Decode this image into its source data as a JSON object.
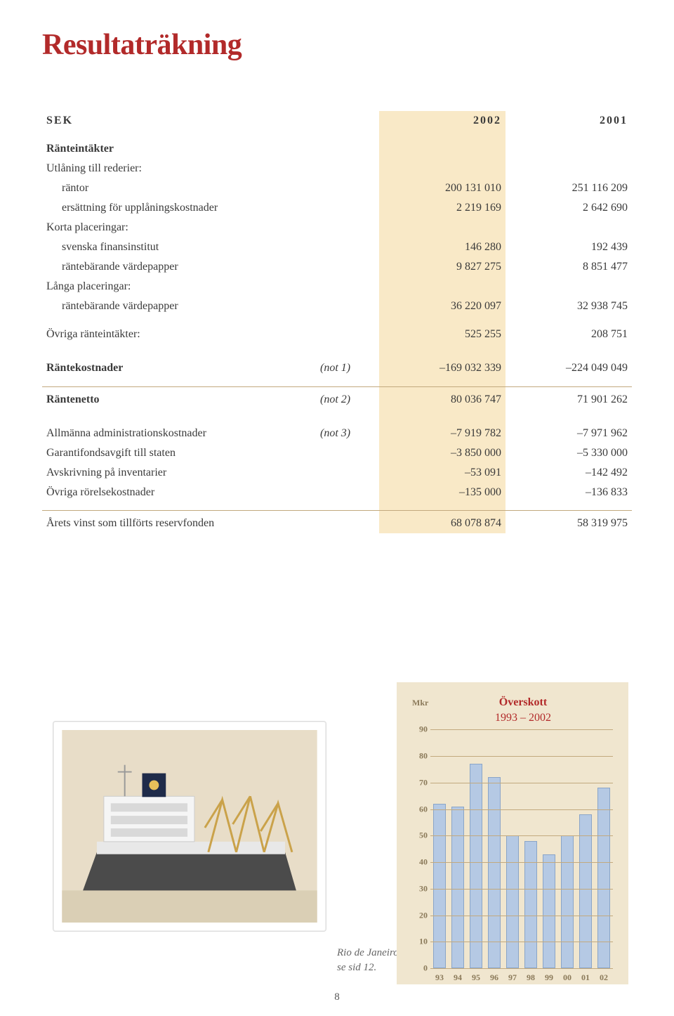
{
  "title": "Resultaträkning",
  "table": {
    "currency_label": "SEK",
    "year_a": "2002",
    "year_b": "2001",
    "sections": {
      "ranteintakter": "Ränteintäkter",
      "utlaning": "Utlåning till rederier:",
      "rantor": {
        "label": "räntor",
        "a": "200 131 010",
        "b": "251 116 209"
      },
      "ersattning": {
        "label": "ersättning för upplåningskostnader",
        "a": "2 219 169",
        "b": "2 642 690"
      },
      "korta": "Korta placeringar:",
      "svenska": {
        "label": "svenska finansinstitut",
        "a": "146 280",
        "b": "192 439"
      },
      "rantevp1": {
        "label": "räntebärande värdepapper",
        "a": "9 827 275",
        "b": "8 851 477"
      },
      "langa": "Långa placeringar:",
      "rantevp2": {
        "label": "räntebärande värdepapper",
        "a": "36 220 097",
        "b": "32 938 745"
      },
      "ovriga_ri": {
        "label": "Övriga ränteintäkter:",
        "a": "525 255",
        "b": "208 751"
      },
      "rantekost": {
        "label": "Räntekostnader",
        "note": "(not 1)",
        "a": "–169 032 339",
        "b": "–224 049 049"
      },
      "rantenetto": {
        "label": "Räntenetto",
        "note": "(not 2)",
        "a": "80 036 747",
        "b": "71 901 262"
      },
      "admin": {
        "label": "Allmänna administrationskostnader",
        "note": "(not 3)",
        "a": "–7 919 782",
        "b": "–7 971 962"
      },
      "garanti": {
        "label": "Garantifondsavgift till staten",
        "a": "–3 850 000",
        "b": "–5 330 000"
      },
      "avskr": {
        "label": "Avskrivning på inventarier",
        "a": "–53 091",
        "b": "–142 492"
      },
      "ovriga_rk": {
        "label": "Övriga rörelsekostnader",
        "a": "–135 000",
        "b": "–136 833"
      },
      "arets": {
        "label": "Årets vinst som tillförts reservfonden",
        "a": "68 078 874",
        "b": "58 319 975"
      }
    }
  },
  "photo_caption_line1": "Rio de Janeiro,",
  "photo_caption_line2": "se sid 12.",
  "chart": {
    "title_line1": "Överskott",
    "title_line2": "1993 – 2002",
    "y_unit": "Mkr",
    "y_max": 90,
    "y_ticks": [
      0,
      10,
      20,
      30,
      40,
      50,
      60,
      70,
      80,
      90
    ],
    "x_labels": [
      "93",
      "94",
      "95",
      "96",
      "97",
      "98",
      "99",
      "00",
      "01",
      "02"
    ],
    "values": [
      62,
      61,
      77,
      72,
      50,
      48,
      43,
      50,
      58,
      68
    ],
    "bg_color": "#f0e6cf",
    "grid_color": "#c2a97e",
    "bar_fill": "#b5c9e4",
    "bar_stroke": "#8aa5c8",
    "title_color": "#b22a2a",
    "tick_color": "#8b7a5a"
  },
  "page_number": "8"
}
